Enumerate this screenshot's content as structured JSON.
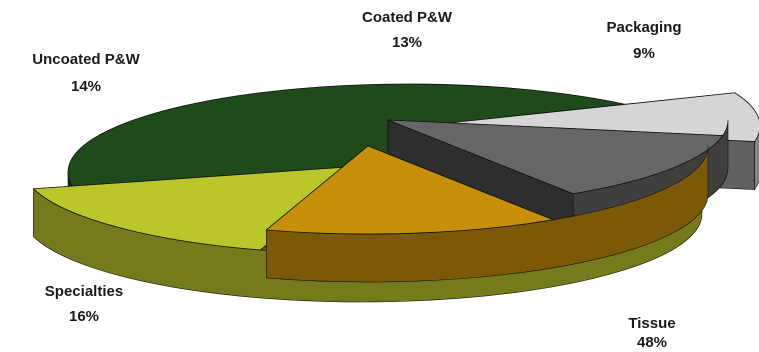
{
  "chart_data": {
    "type": "pie",
    "style": "3d-exploded",
    "categories": [
      "Tissue",
      "Packaging",
      "Coated P&W",
      "Uncoated P&W",
      "Specialties"
    ],
    "values": [
      48,
      9,
      13,
      14,
      16
    ],
    "value_labels": [
      "48%",
      "9%",
      "13%",
      "14%",
      "16%"
    ],
    "colors": [
      "#1f4a1c",
      "#d6d6d6",
      "#666666",
      "#c8900a",
      "#b9c72a"
    ],
    "legend": "none"
  }
}
